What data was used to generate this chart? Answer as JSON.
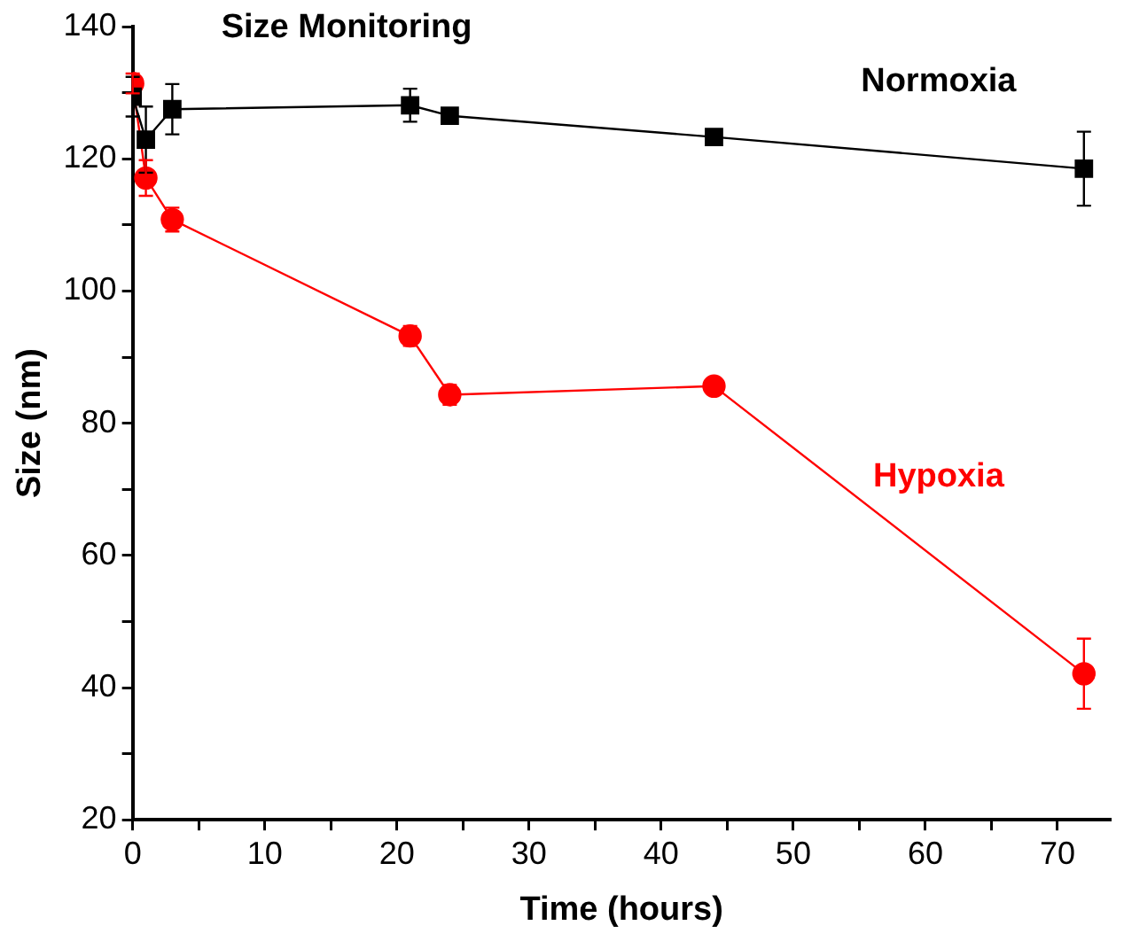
{
  "chart_data": {
    "type": "line",
    "title": "Size Monitoring",
    "xlabel": "Time (hours)",
    "ylabel": "Size (nm)",
    "xlim": [
      0,
      74
    ],
    "xticks": [
      0,
      {
        "value": 5,
        "label": null
      },
      10,
      {
        "value": 15,
        "label": null
      },
      20,
      {
        "value": 25,
        "label": null
      },
      30,
      {
        "value": 35,
        "label": null
      },
      40,
      {
        "value": 45,
        "label": null
      },
      50,
      {
        "value": 55,
        "label": null
      },
      60,
      {
        "value": 65,
        "label": null
      },
      70
    ],
    "ylim": [
      20,
      140
    ],
    "yticks": [
      20,
      {
        "value": 30,
        "label": null
      },
      40,
      {
        "value": 50,
        "label": null
      },
      60,
      {
        "value": 70,
        "label": null
      },
      80,
      {
        "value": 90,
        "label": null
      },
      100,
      {
        "value": 110,
        "label": null
      },
      120,
      {
        "value": 130,
        "label": null
      },
      140
    ],
    "grid": false,
    "legend": false,
    "series": [
      {
        "name": "Normoxia",
        "color": "#000000",
        "marker": "square",
        "x": [
          0,
          1,
          3,
          21,
          24,
          44,
          72
        ],
        "values": [
          129.4,
          122.9,
          127.5,
          128.1,
          126.5,
          123.3,
          118.5
        ],
        "errors": [
          3,
          5,
          3.8,
          2.5,
          null,
          null,
          5.6
        ]
      },
      {
        "name": "Hypoxia",
        "color": "#ff0000",
        "marker": "circle",
        "x": [
          0,
          1,
          3,
          21,
          24,
          44,
          72
        ],
        "values": [
          131.4,
          117.1,
          110.8,
          93.2,
          84.3,
          85.6,
          42.1
        ],
        "errors": [
          1.5,
          2.7,
          1.8,
          1.5,
          1.5,
          null,
          5.3
        ]
      }
    ]
  }
}
